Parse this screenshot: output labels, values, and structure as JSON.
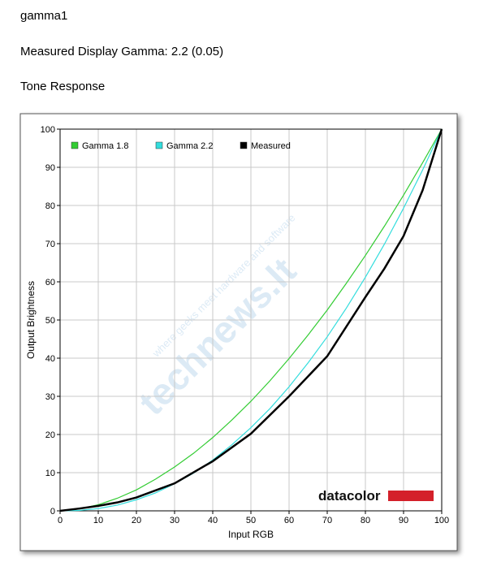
{
  "header": {
    "title": "gamma1",
    "measured": "Measured Display Gamma: 2.2 (0.05)",
    "section": "Tone Response"
  },
  "chart_data": {
    "type": "line",
    "xlabel": "Input RGB",
    "ylabel": "Output Brightness",
    "watermark": [
      "technews.lt",
      "where geeks meet hardware and software"
    ],
    "logo": "datacolor",
    "xlim": [
      0,
      100
    ],
    "ylim": [
      0,
      100
    ],
    "xticks": [
      0,
      10,
      20,
      30,
      40,
      50,
      60,
      70,
      80,
      90,
      100
    ],
    "yticks": [
      0,
      10,
      20,
      30,
      40,
      50,
      60,
      70,
      80,
      90,
      100
    ],
    "grid": true,
    "legend": "top-left",
    "series": [
      {
        "name": "Gamma 1.8",
        "color": "#33cc33",
        "x": [
          0,
          5,
          10,
          15,
          20,
          25,
          30,
          35,
          40,
          45,
          50,
          55,
          60,
          65,
          70,
          75,
          80,
          85,
          90,
          95,
          100
        ],
        "values": [
          0,
          0.5,
          1.6,
          3.3,
          5.5,
          8.3,
          11.5,
          15.1,
          19.2,
          23.8,
          28.7,
          34.1,
          39.9,
          46.1,
          52.6,
          59.6,
          66.9,
          74.6,
          82.7,
          91.2,
          100
        ]
      },
      {
        "name": "Gamma 2.2",
        "color": "#33dddd",
        "x": [
          0,
          5,
          10,
          15,
          20,
          25,
          30,
          35,
          40,
          45,
          50,
          55,
          60,
          65,
          70,
          75,
          80,
          85,
          90,
          95,
          100
        ],
        "values": [
          0,
          0.1,
          0.6,
          1.5,
          2.9,
          4.7,
          7.1,
          9.9,
          13.3,
          17.3,
          21.8,
          26.8,
          32.5,
          38.8,
          45.6,
          53.1,
          61.2,
          69.9,
          79.3,
          89.3,
          100
        ]
      },
      {
        "name": "Measured",
        "color": "#000000",
        "x": [
          0,
          5,
          10,
          15,
          20,
          30,
          40,
          50,
          60,
          70,
          80,
          85,
          90,
          95,
          100
        ],
        "values": [
          0,
          0.6,
          1.3,
          2.2,
          3.5,
          7.2,
          13.0,
          20.2,
          30.0,
          40.5,
          56.0,
          63.5,
          72.0,
          84.0,
          100
        ]
      }
    ]
  }
}
